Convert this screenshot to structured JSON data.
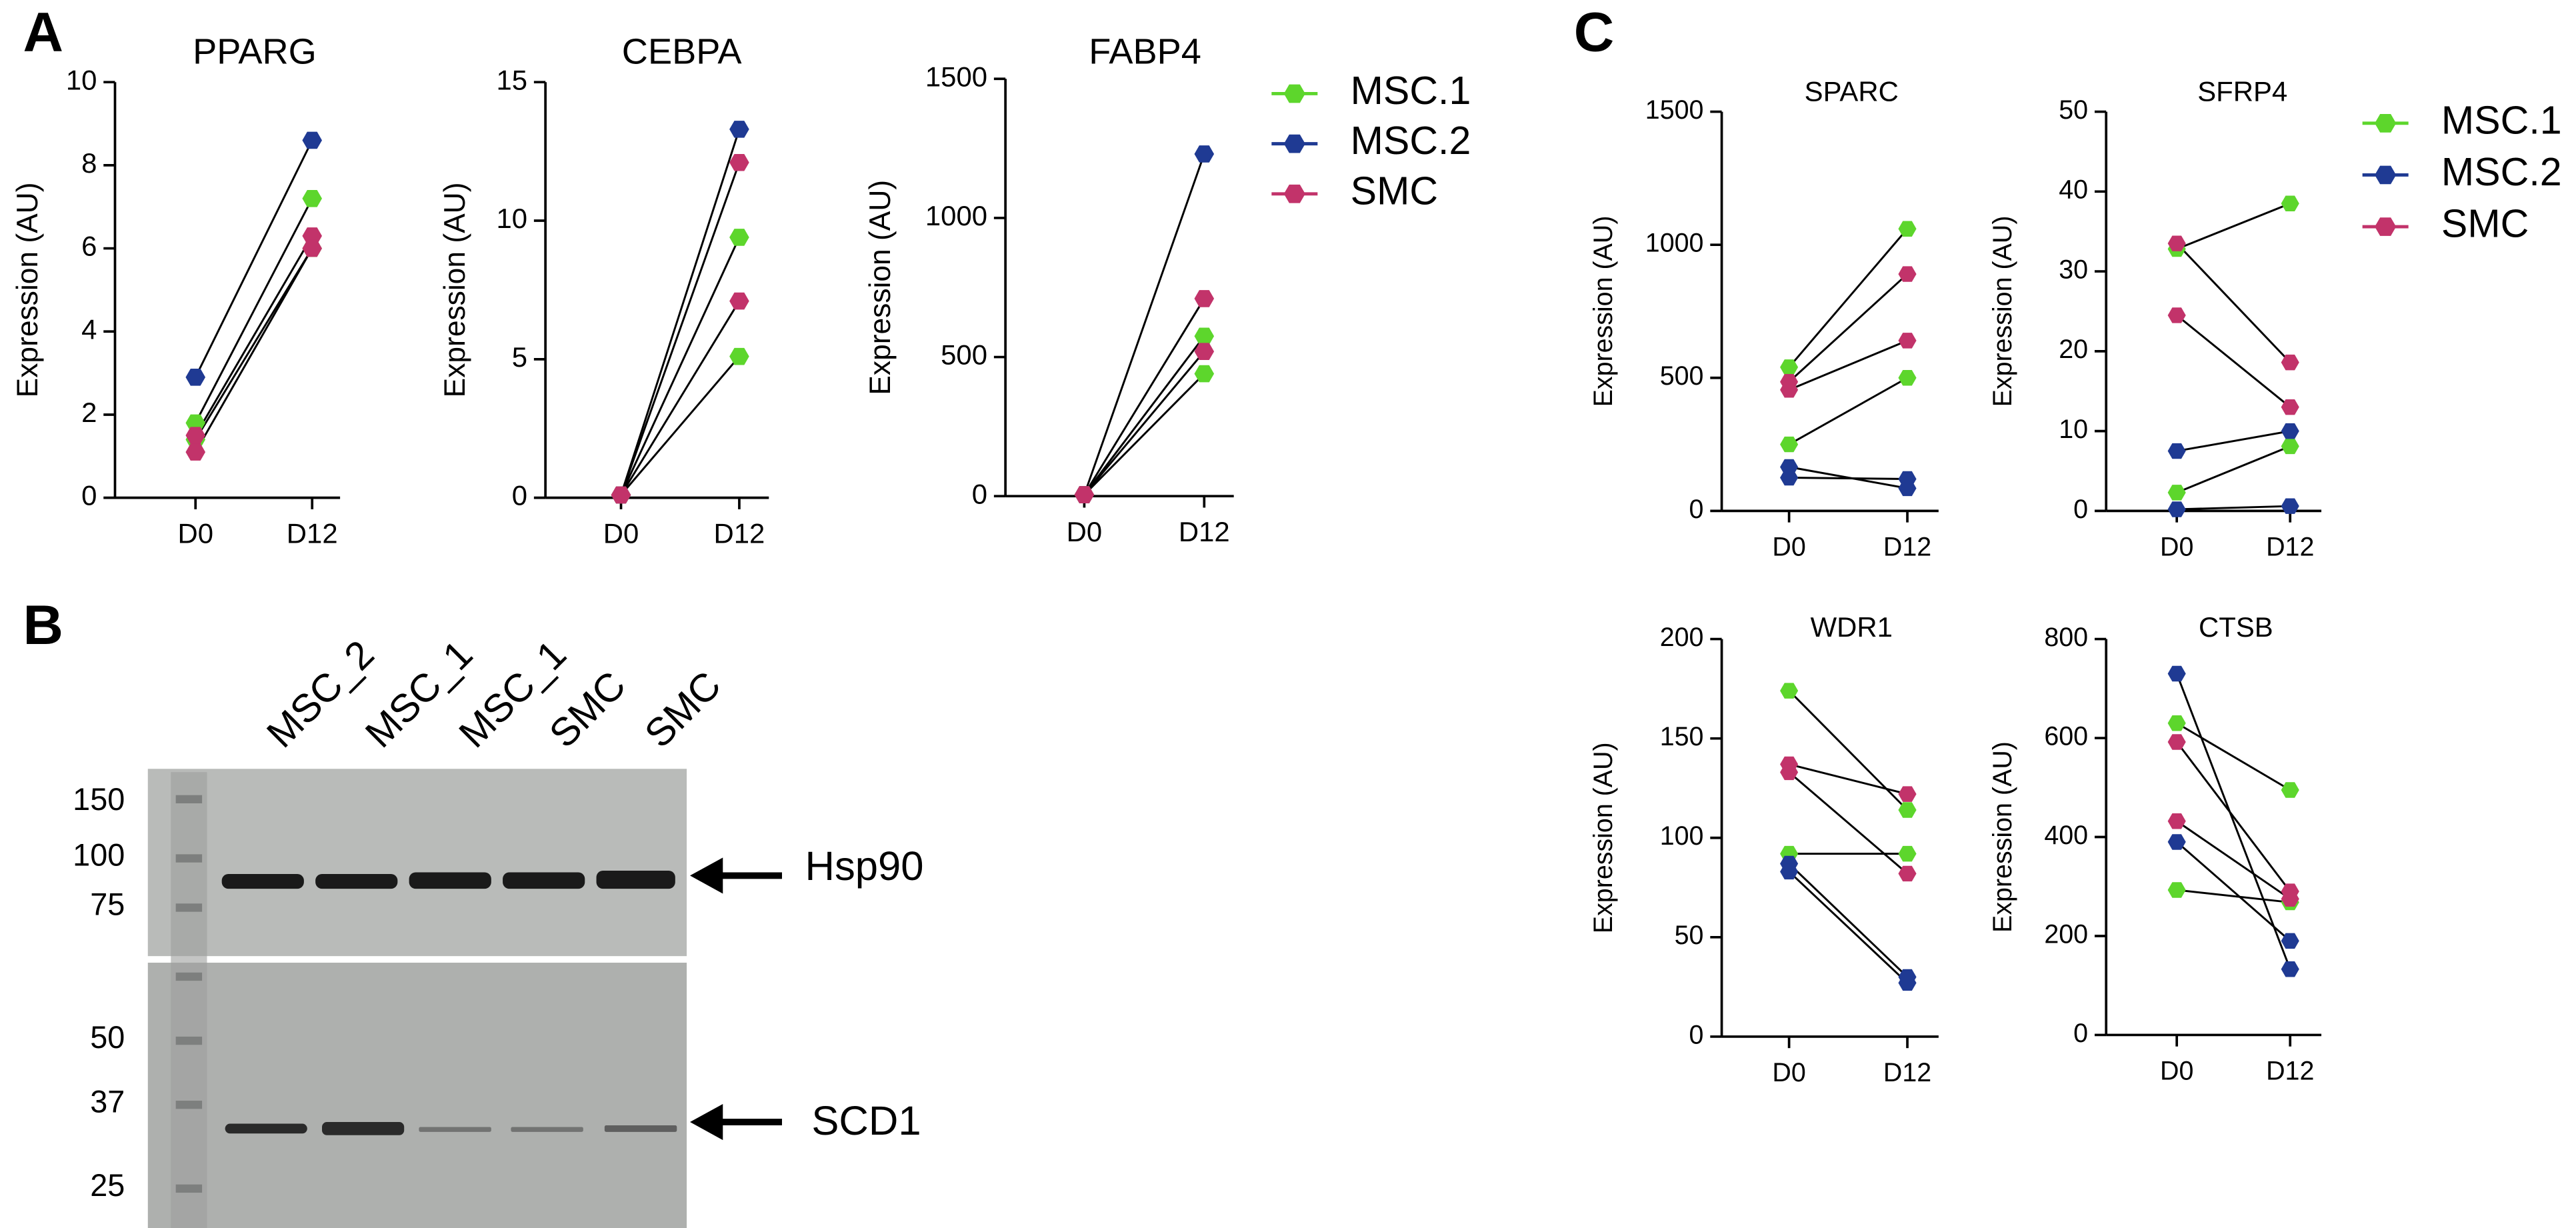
{
  "panel_labels": [
    "A",
    "B",
    "C"
  ],
  "blot": {
    "lanes": [
      "MSC_2",
      "MSC_1",
      "MSC_1",
      "SMC",
      "SMC"
    ],
    "ladder": [
      "150",
      "100",
      "75",
      "50",
      "37",
      "25"
    ],
    "bands": [
      "Hsp90",
      "SCD1"
    ]
  },
  "chart_data": [
    {
      "type": "line",
      "title": "PPARG",
      "y_label": "Expression (AU)",
      "categories": [
        "D0",
        "D12"
      ],
      "ylim": [
        0,
        10
      ],
      "yticks": [
        0,
        2,
        4,
        6,
        8,
        10
      ],
      "series": [
        {
          "color": "#5dd62c",
          "values": [
            [
              1.8,
              1.4
            ],
            [
              7.2,
              6.0
            ]
          ]
        },
        {
          "color": "#1f3a93",
          "values": [
            [
              2.9
            ],
            [
              8.6
            ]
          ]
        },
        {
          "color": "#c2336a",
          "values": [
            [
              1.5,
              1.1
            ],
            [
              6.3,
              6.0
            ]
          ]
        }
      ]
    },
    {
      "type": "line",
      "title": "CEBPA",
      "y_label": "Expression (AU)",
      "categories": [
        "D0",
        "D12"
      ],
      "ylim": [
        0,
        15
      ],
      "yticks": [
        0,
        5,
        10,
        15
      ],
      "series": [
        {
          "color": "#5dd62c",
          "values": [
            [
              0.1,
              0.1
            ],
            [
              9.4,
              5.1
            ]
          ]
        },
        {
          "color": "#1f3a93",
          "values": [
            [
              0.1
            ],
            [
              13.3
            ]
          ]
        },
        {
          "color": "#c2336a",
          "values": [
            [
              0.1,
              0.1
            ],
            [
              12.1,
              7.1
            ]
          ]
        }
      ]
    },
    {
      "type": "line",
      "title": "FABP4",
      "y_label": "Expression (AU)",
      "categories": [
        "D0",
        "D12"
      ],
      "ylim": [
        0,
        1500
      ],
      "yticks": [
        0,
        500,
        1000,
        1500
      ],
      "legend": "right",
      "series": [
        {
          "name": "MSC.1",
          "color": "#5dd62c",
          "values": [
            [
              5,
              5
            ],
            [
              575,
              440
            ]
          ]
        },
        {
          "name": "MSC.2",
          "color": "#1f3a93",
          "values": [
            [
              5
            ],
            [
              1230
            ]
          ]
        },
        {
          "name": "SMC",
          "color": "#c2336a",
          "values": [
            [
              5,
              5
            ],
            [
              710,
              520
            ]
          ]
        }
      ]
    },
    {
      "type": "line",
      "title": "SPARC",
      "y_label": "Expression (AU)",
      "categories": [
        "D0",
        "D12"
      ],
      "ylim": [
        0,
        1500
      ],
      "yticks": [
        0,
        500,
        1000,
        1500
      ],
      "series": [
        {
          "color": "#5dd62c",
          "values": [
            [
              540,
              250
            ],
            [
              1060,
              500
            ]
          ]
        },
        {
          "color": "#1f3a93",
          "values": [
            [
              165,
              125
            ],
            [
              85,
              120
            ]
          ]
        },
        {
          "color": "#c2336a",
          "values": [
            [
              485,
              455
            ],
            [
              890,
              640
            ]
          ]
        }
      ]
    },
    {
      "type": "line",
      "title": "SFRP4",
      "y_label": "Expression (AU)",
      "categories": [
        "D0",
        "D12"
      ],
      "ylim": [
        0,
        50
      ],
      "yticks": [
        0,
        10,
        20,
        30,
        40,
        50
      ],
      "legend": "right",
      "series": [
        {
          "name": "MSC.1",
          "color": "#5dd62c",
          "values": [
            [
              32.8,
              2.3
            ],
            [
              38.5,
              8.1
            ]
          ]
        },
        {
          "name": "MSC.2",
          "color": "#1f3a93",
          "values": [
            [
              7.5,
              0.2
            ],
            [
              10.0,
              0.6
            ]
          ]
        },
        {
          "name": "SMC",
          "color": "#c2336a",
          "values": [
            [
              33.5,
              24.5
            ],
            [
              18.6,
              13.0
            ]
          ]
        }
      ]
    },
    {
      "type": "line",
      "title": "WDR1",
      "y_label": "Expression (AU)",
      "categories": [
        "D0",
        "D12"
      ],
      "ylim": [
        0,
        200
      ],
      "yticks": [
        0,
        50,
        100,
        150,
        200
      ],
      "series": [
        {
          "color": "#5dd62c",
          "values": [
            [
              174,
              92
            ],
            [
              114,
              92
            ]
          ]
        },
        {
          "color": "#1f3a93",
          "values": [
            [
              87,
              83
            ],
            [
              30,
              27
            ]
          ]
        },
        {
          "color": "#c2336a",
          "values": [
            [
              137,
              133
            ],
            [
              122,
              82
            ]
          ]
        }
      ]
    },
    {
      "type": "line",
      "title": "CTSB",
      "y_label": "Expression (AU)",
      "categories": [
        "D0",
        "D12"
      ],
      "ylim": [
        0,
        800
      ],
      "yticks": [
        0,
        200,
        400,
        600,
        800
      ],
      "series": [
        {
          "color": "#5dd62c",
          "values": [
            [
              630,
              293
            ],
            [
              495,
              268
            ]
          ]
        },
        {
          "color": "#1f3a93",
          "values": [
            [
              730,
              390
            ],
            [
              133,
              190
            ]
          ]
        },
        {
          "color": "#c2336a",
          "values": [
            [
              592,
              432
            ],
            [
              290,
              275
            ]
          ]
        }
      ]
    }
  ]
}
